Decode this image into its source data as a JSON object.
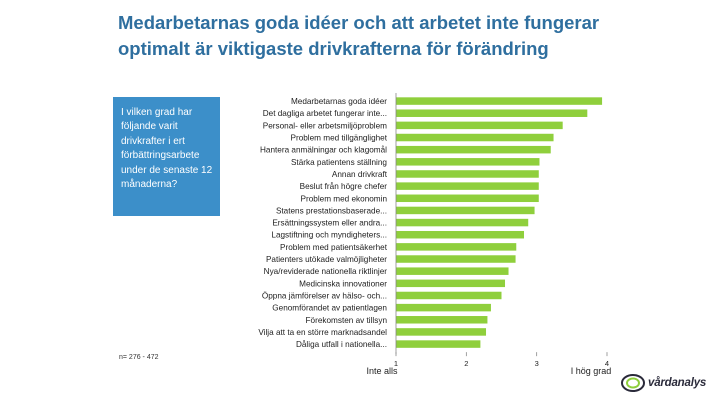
{
  "title": {
    "line1": "Medarbetarnas goda idéer och att arbetet inte fungerar",
    "line2": "optimalt är viktigaste drivkrafterna för förändring"
  },
  "question_box": {
    "text": "I vilken grad har följande varit drivkrafter i ert förbättringsarbete under de senaste 12 månaderna?"
  },
  "sample_note": "n= 276 - 472",
  "logo": {
    "text": "vårdanalys"
  },
  "colors": {
    "bar": "#8fcf3c",
    "accent": "#3c8fc9",
    "title": "#2f6f9f"
  },
  "chart_data": {
    "type": "bar",
    "orientation": "horizontal",
    "categories": [
      "Medarbetarnas goda idéer",
      "Det dagliga arbetet fungerar inte...",
      "Personal- eller arbetsmiljöproblem",
      "Problem med tillgänglighet",
      "Hantera anmälningar och klagomål",
      "Stärka patientens ställning",
      "Annan drivkraft",
      "Beslut från högre chefer",
      "Problem med ekonomin",
      "Statens prestationsbaserade...",
      "Ersättningssystem eller andra...",
      "Lagstiftning och myndigheters...",
      "Problem med patientsäkerhet",
      "Patienters utökade valmöjligheter",
      "Nya/reviderade nationella riktlinjer",
      "Medicinska innovationer",
      "Öppna jämförelser av hälso- och...",
      "Genomförandet av patientlagen",
      "Förekomsten av tillsyn",
      "Vilja att ta en större marknadsandel",
      "Dåliga utfall i nationella..."
    ],
    "values": [
      3.93,
      3.72,
      3.37,
      3.24,
      3.2,
      3.04,
      3.03,
      3.03,
      3.03,
      2.97,
      2.88,
      2.82,
      2.71,
      2.7,
      2.6,
      2.55,
      2.5,
      2.35,
      2.3,
      2.28,
      2.2
    ],
    "xlim": [
      1,
      4
    ],
    "xticks": [
      "1",
      "2",
      "3",
      "4"
    ],
    "xtick_values": [
      1,
      2,
      3,
      4
    ],
    "x_end_labels": {
      "low": "Inte alls",
      "high": "I hög grad"
    },
    "title": "",
    "xlabel": "",
    "ylabel": ""
  }
}
